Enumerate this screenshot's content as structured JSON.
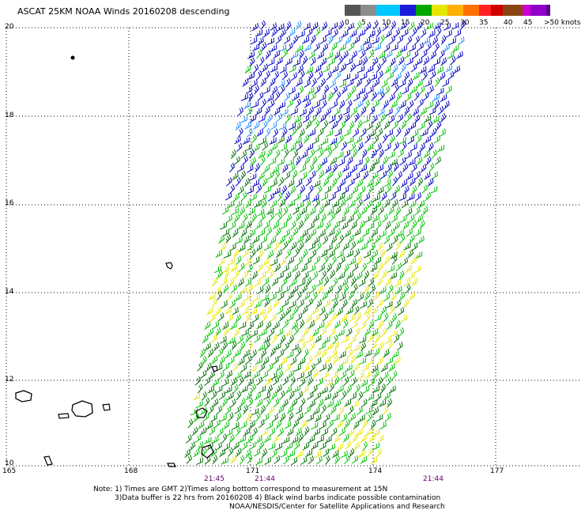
{
  "title": "ASCAT 25KM NOAA Winds 20160208 descending",
  "legend": {
    "colors": [
      "#555555",
      "#8c8c8c",
      "#00c8ff",
      "#1b1bd9",
      "#00a800",
      "#e6e600",
      "#ffb000",
      "#ff7000",
      "#ff2020",
      "#d10000",
      "#8b4513",
      "#d000d0",
      "#9000c8",
      "#5a008a"
    ],
    "labels": [
      "0",
      "5",
      "10",
      "15",
      "20",
      "25",
      "30",
      "35",
      "40",
      "45",
      ">50 knots"
    ]
  },
  "axes": {
    "lat_labels": [
      "20",
      "18",
      "16",
      "14",
      "12",
      "10"
    ],
    "lon_labels": [
      "165",
      "168",
      "171",
      "174",
      "177"
    ]
  },
  "times": [
    "21:45",
    "21:44",
    "21:44"
  ],
  "notes": [
    "Note: 1) Times are GMT 2)Times along bottom correspond to measurement at 15N",
    "3)Data buffer is 22 hrs from 20160208 4) Black wind barbs indicate possible contamination",
    "NOAA/NESDIS/Center for Satellite Applications and Research"
  ],
  "wind_colors": {
    "blue": "#0000c0",
    "light_blue": "#1e90ff",
    "green": "#00c000",
    "dark_green": "#007000",
    "yellow": "#e6e600"
  }
}
